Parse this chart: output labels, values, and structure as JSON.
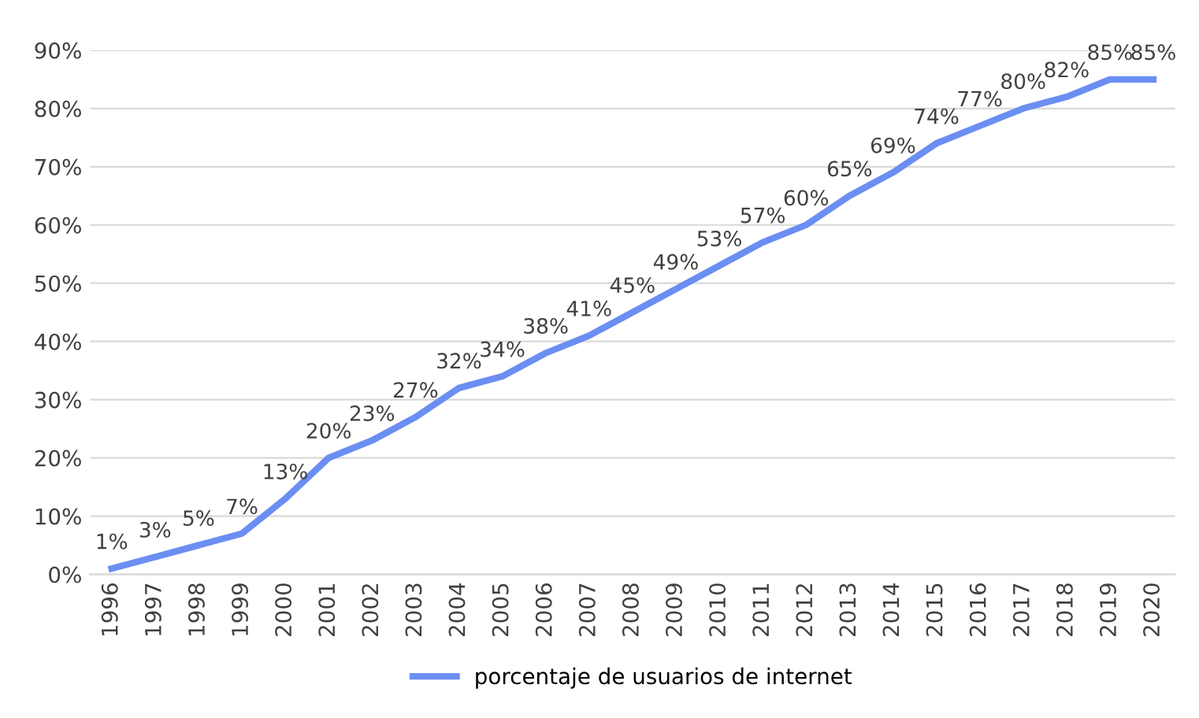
{
  "chart_data": {
    "type": "line",
    "categories": [
      "1996",
      "1997",
      "1998",
      "1999",
      "2000",
      "2001",
      "2002",
      "2003",
      "2004",
      "2005",
      "2006",
      "2007",
      "2008",
      "2009",
      "2010",
      "2011",
      "2012",
      "2013",
      "2014",
      "2015",
      "2016",
      "2017",
      "2018",
      "2019",
      "2020"
    ],
    "series": [
      {
        "name": "porcentaje de usuarios de internet",
        "color": "#6b8ef2",
        "values": [
          1,
          3,
          5,
          7,
          13,
          20,
          23,
          27,
          32,
          34,
          38,
          41,
          45,
          49,
          53,
          57,
          60,
          65,
          69,
          74,
          77,
          80,
          82,
          85,
          85
        ],
        "value_labels": [
          "1%",
          "3%",
          "5%",
          "7%",
          "13%",
          "20%",
          "23%",
          "27%",
          "32%",
          "34%",
          "38%",
          "41%",
          "45%",
          "49%",
          "53%",
          "57%",
          "60%",
          "65%",
          "69%",
          "74%",
          "77%",
          "80%",
          "82%",
          "85%",
          "85%"
        ]
      }
    ],
    "ylim": [
      0,
      90
    ],
    "yticks": [
      {
        "value": 0,
        "label": "0%"
      },
      {
        "value": 10,
        "label": "10%"
      },
      {
        "value": 20,
        "label": "20%"
      },
      {
        "value": 30,
        "label": "30%"
      },
      {
        "value": 40,
        "label": "40%"
      },
      {
        "value": 50,
        "label": "50%"
      },
      {
        "value": 60,
        "label": "60%"
      },
      {
        "value": 70,
        "label": "70%"
      },
      {
        "value": 80,
        "label": "80%"
      },
      {
        "value": 90,
        "label": "90%"
      }
    ],
    "grid": "y",
    "legend": "bottom",
    "marker": "none",
    "line_style": "solid"
  }
}
